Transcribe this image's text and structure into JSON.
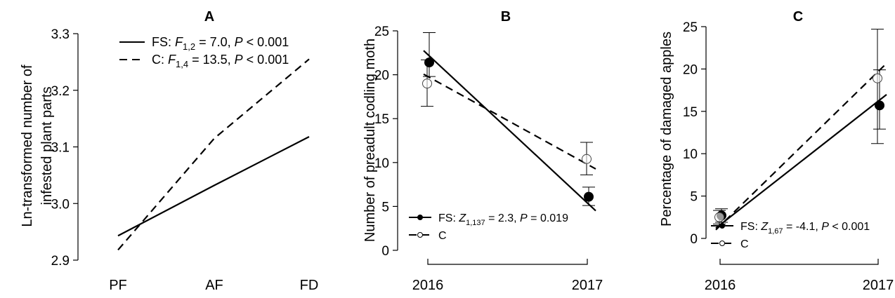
{
  "chart_data": [
    {
      "panel": "A",
      "type": "line",
      "title": "A",
      "ylabel": [
        "Ln-transformed number of",
        "infested plant parts"
      ],
      "xlabel": "",
      "categories": [
        "PF",
        "AF",
        "FD"
      ],
      "ylim": [
        2.9,
        3.3
      ],
      "yticks": [
        2.9,
        3.0,
        3.1,
        3.2,
        3.3
      ],
      "grid": false,
      "legend_position": "top-left",
      "series": [
        {
          "name": "FS",
          "style": "solid",
          "values": [
            2.943,
            3.032,
            3.118
          ],
          "legend_text": "FS: ",
          "stat_symbol": "F",
          "stat_sub": "1,2",
          "stat_text": " = 7.0, ",
          "p_text": " < 0.001"
        },
        {
          "name": "C",
          "style": "dashed",
          "values": [
            2.918,
            3.115,
            3.255
          ],
          "legend_text": "C: ",
          "stat_symbol": "F",
          "stat_sub": "1,4",
          "stat_text": " = 13.5, ",
          "p_text": " < 0.001"
        }
      ]
    },
    {
      "panel": "B",
      "type": "line",
      "title": "B",
      "ylabel": [
        "Number of preadult codling moth"
      ],
      "xlabel": "",
      "categories": [
        "2016",
        "2017"
      ],
      "ylim": [
        0,
        25
      ],
      "yticks": [
        0,
        5,
        10,
        15,
        20,
        25
      ],
      "grid": false,
      "legend_position": "bottom-left",
      "series": [
        {
          "name": "FS",
          "style": "solid",
          "marker": "filled",
          "values": [
            21.4,
            6.1
          ],
          "err_low": [
            19.8,
            5.1
          ],
          "err_high": [
            24.8,
            7.2
          ],
          "fit": [
            22.3,
            5.4
          ],
          "legend_text": "FS: ",
          "stat_symbol": "Z",
          "stat_sub": "1,137",
          "stat_text": " = 2.3, ",
          "p_text": " = 0.019"
        },
        {
          "name": "C",
          "style": "dashed",
          "marker": "open",
          "values": [
            19.0,
            10.4
          ],
          "err_low": [
            16.4,
            8.6
          ],
          "err_high": [
            21.7,
            12.3
          ],
          "fit": [
            19.8,
            9.8
          ],
          "legend_text": "C",
          "stat_symbol": "",
          "stat_sub": "",
          "stat_text": "",
          "p_text": ""
        }
      ]
    },
    {
      "panel": "C",
      "type": "line",
      "title": "C",
      "ylabel": [
        "Percentage of damaged apples"
      ],
      "xlabel": "",
      "categories": [
        "2016",
        "2017"
      ],
      "ylim": [
        0,
        25
      ],
      "yticks": [
        0,
        5,
        10,
        15,
        20,
        25
      ],
      "grid": false,
      "legend_position": "bottom-right",
      "series": [
        {
          "name": "FS",
          "style": "solid",
          "marker": "filled",
          "values": [
            2.7,
            15.7
          ],
          "err_low": [
            1.9,
            12.9
          ],
          "err_high": [
            3.5,
            19.9
          ],
          "fit": [
            1.6,
            16.2
          ],
          "legend_text": "FS: ",
          "stat_symbol": "Z",
          "stat_sub": "1,67",
          "stat_text": " = -4.1, ",
          "p_text": " < 0.001"
        },
        {
          "name": "C",
          "style": "dashed",
          "marker": "open",
          "values": [
            2.5,
            18.9
          ],
          "err_low": [
            1.7,
            11.2
          ],
          "err_high": [
            3.3,
            24.7
          ],
          "fit": [
            1.5,
            19.7
          ],
          "legend_text": "C",
          "stat_symbol": "",
          "stat_sub": "",
          "stat_text": "",
          "p_text": ""
        }
      ]
    }
  ],
  "p_symbol": "P"
}
